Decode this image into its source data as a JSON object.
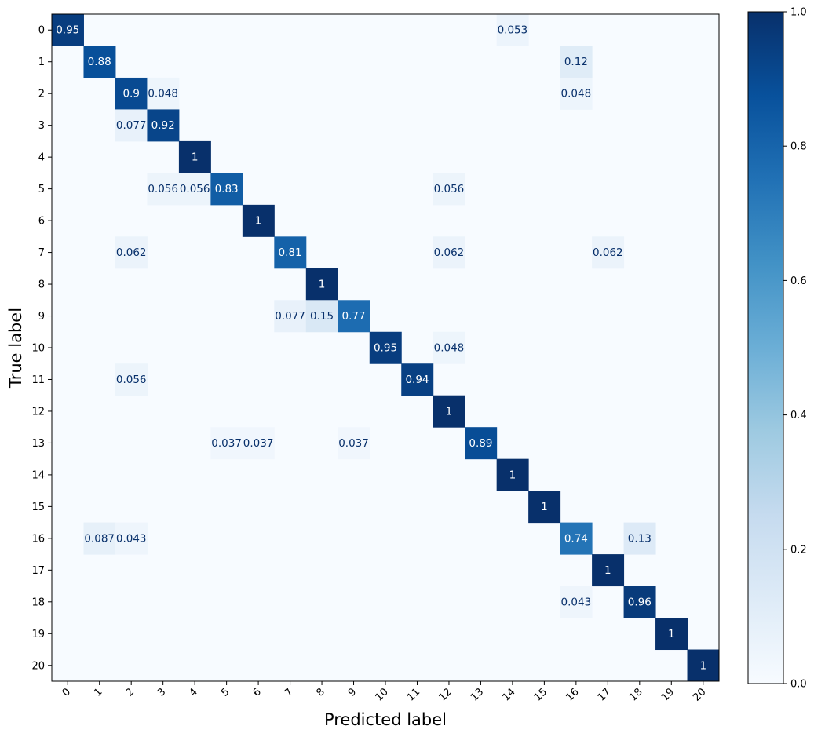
{
  "chart_data": {
    "type": "heatmap",
    "title": "",
    "xlabel": "Predicted label",
    "ylabel": "True label",
    "x_categories": [
      "0",
      "1",
      "2",
      "3",
      "4",
      "5",
      "6",
      "7",
      "8",
      "9",
      "10",
      "11",
      "12",
      "13",
      "14",
      "15",
      "16",
      "17",
      "18",
      "19",
      "20"
    ],
    "y_categories": [
      "0",
      "1",
      "2",
      "3",
      "4",
      "5",
      "6",
      "7",
      "8",
      "9",
      "10",
      "11",
      "12",
      "13",
      "14",
      "15",
      "16",
      "17",
      "18",
      "19",
      "20"
    ],
    "cells": [
      {
        "row": 0,
        "col": 0,
        "value": 0.95,
        "label": "0.95"
      },
      {
        "row": 0,
        "col": 14,
        "value": 0.053,
        "label": "0.053"
      },
      {
        "row": 1,
        "col": 1,
        "value": 0.88,
        "label": "0.88"
      },
      {
        "row": 1,
        "col": 16,
        "value": 0.12,
        "label": "0.12"
      },
      {
        "row": 2,
        "col": 2,
        "value": 0.9,
        "label": "0.9"
      },
      {
        "row": 2,
        "col": 3,
        "value": 0.048,
        "label": "0.048"
      },
      {
        "row": 2,
        "col": 16,
        "value": 0.048,
        "label": "0.048"
      },
      {
        "row": 3,
        "col": 2,
        "value": 0.077,
        "label": "0.077"
      },
      {
        "row": 3,
        "col": 3,
        "value": 0.92,
        "label": "0.92"
      },
      {
        "row": 4,
        "col": 4,
        "value": 1,
        "label": "1"
      },
      {
        "row": 5,
        "col": 3,
        "value": 0.056,
        "label": "0.056"
      },
      {
        "row": 5,
        "col": 4,
        "value": 0.056,
        "label": "0.056"
      },
      {
        "row": 5,
        "col": 5,
        "value": 0.83,
        "label": "0.83"
      },
      {
        "row": 5,
        "col": 12,
        "value": 0.056,
        "label": "0.056"
      },
      {
        "row": 6,
        "col": 6,
        "value": 1,
        "label": "1"
      },
      {
        "row": 7,
        "col": 2,
        "value": 0.062,
        "label": "0.062"
      },
      {
        "row": 7,
        "col": 7,
        "value": 0.81,
        "label": "0.81"
      },
      {
        "row": 7,
        "col": 12,
        "value": 0.062,
        "label": "0.062"
      },
      {
        "row": 7,
        "col": 17,
        "value": 0.062,
        "label": "0.062"
      },
      {
        "row": 8,
        "col": 8,
        "value": 1,
        "label": "1"
      },
      {
        "row": 9,
        "col": 7,
        "value": 0.077,
        "label": "0.077"
      },
      {
        "row": 9,
        "col": 8,
        "value": 0.15,
        "label": "0.15"
      },
      {
        "row": 9,
        "col": 9,
        "value": 0.77,
        "label": "0.77"
      },
      {
        "row": 10,
        "col": 10,
        "value": 0.95,
        "label": "0.95"
      },
      {
        "row": 10,
        "col": 12,
        "value": 0.048,
        "label": "0.048"
      },
      {
        "row": 11,
        "col": 2,
        "value": 0.056,
        "label": "0.056"
      },
      {
        "row": 11,
        "col": 11,
        "value": 0.94,
        "label": "0.94"
      },
      {
        "row": 12,
        "col": 12,
        "value": 1,
        "label": "1"
      },
      {
        "row": 13,
        "col": 5,
        "value": 0.037,
        "label": "0.037"
      },
      {
        "row": 13,
        "col": 6,
        "value": 0.037,
        "label": "0.037"
      },
      {
        "row": 13,
        "col": 9,
        "value": 0.037,
        "label": "0.037"
      },
      {
        "row": 13,
        "col": 13,
        "value": 0.89,
        "label": "0.89"
      },
      {
        "row": 14,
        "col": 14,
        "value": 1,
        "label": "1"
      },
      {
        "row": 15,
        "col": 15,
        "value": 1,
        "label": "1"
      },
      {
        "row": 16,
        "col": 1,
        "value": 0.087,
        "label": "0.087"
      },
      {
        "row": 16,
        "col": 2,
        "value": 0.043,
        "label": "0.043"
      },
      {
        "row": 16,
        "col": 16,
        "value": 0.74,
        "label": "0.74"
      },
      {
        "row": 16,
        "col": 18,
        "value": 0.13,
        "label": "0.13"
      },
      {
        "row": 17,
        "col": 17,
        "value": 1,
        "label": "1"
      },
      {
        "row": 18,
        "col": 16,
        "value": 0.043,
        "label": "0.043"
      },
      {
        "row": 18,
        "col": 18,
        "value": 0.96,
        "label": "0.96"
      },
      {
        "row": 19,
        "col": 19,
        "value": 1,
        "label": "1"
      },
      {
        "row": 20,
        "col": 20,
        "value": 1,
        "label": "1"
      }
    ],
    "colorbar": {
      "colormap": "Blues",
      "range": [
        0.0,
        1.0
      ],
      "ticks": [
        {
          "value": 0.0,
          "label": "0.0"
        },
        {
          "value": 0.2,
          "label": "0.2"
        },
        {
          "value": 0.4,
          "label": "0.4"
        },
        {
          "value": 0.6,
          "label": "0.6"
        },
        {
          "value": 0.8,
          "label": "0.8"
        },
        {
          "value": 1.0,
          "label": "1.0"
        }
      ],
      "colors": [
        "#f7fbff",
        "#deebf7",
        "#c6dbef",
        "#9ecae1",
        "#6baed6",
        "#4292c6",
        "#2171b5",
        "#08519c",
        "#08306b"
      ]
    },
    "text_colors": {
      "dark": "#08306b",
      "light": "#ffffff"
    }
  }
}
